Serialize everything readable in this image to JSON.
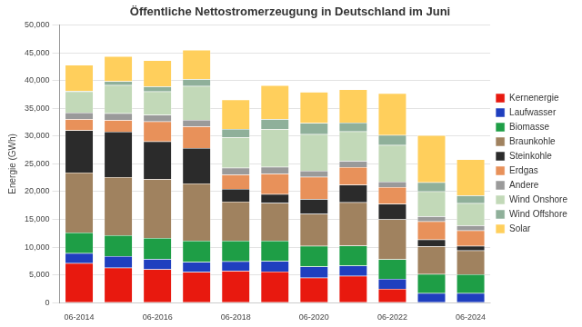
{
  "chart_data": {
    "type": "bar",
    "title": "Öffentliche Nettostromerzeugung in Deutschland im Juni",
    "y_label": "Energie (GWh)",
    "categories": [
      "06-2014",
      null,
      "06-2016",
      null,
      "06-2018",
      null,
      "06-2020",
      null,
      "06-2022",
      null,
      "06-2024"
    ],
    "stacked": true,
    "grid": true,
    "legend": "right",
    "ylim": [
      0,
      50000
    ],
    "yticks": [
      0,
      {
        "value": 5000,
        "label": "5,000"
      },
      {
        "value": 10000,
        "label": "10,000"
      },
      {
        "value": 15000,
        "label": "15,000"
      },
      {
        "value": 20000,
        "label": "20,000"
      },
      {
        "value": 25000,
        "label": "25,000"
      },
      {
        "value": 30000,
        "label": "30,000"
      },
      {
        "value": 35000,
        "label": "35,000"
      },
      {
        "value": 40000,
        "label": "40,000"
      },
      {
        "value": 45000,
        "label": "45,000"
      },
      {
        "value": 50000,
        "label": "50,000"
      }
    ],
    "series": [
      {
        "name": "Kernenergie",
        "color": "#e8190f",
        "values": [
          7100,
          6300,
          6000,
          5500,
          5700,
          5600,
          4500,
          4800,
          2500,
          0,
          0
        ]
      },
      {
        "name": "Laufwasser",
        "color": "#1f3fbf",
        "values": [
          1816,
          2079,
          1857,
          1813,
          1724,
          1891,
          2002,
          1853,
          1798,
          1704,
          1714
        ]
      },
      {
        "name": "Biomasse",
        "color": "#1e9e46",
        "values": [
          3700,
          3750,
          3800,
          3850,
          3750,
          3650,
          3700,
          3600,
          3500,
          3450,
          3400
        ]
      },
      {
        "name": "Braunkohle",
        "color": "#a0825f",
        "values": [
          10800,
          10500,
          10600,
          10300,
          7000,
          6800,
          5800,
          7800,
          7200,
          5000,
          4300
        ]
      },
      {
        "name": "Steinkohle",
        "color": "#2b2b2b",
        "values": [
          7610,
          8160,
          6765,
          6368,
          2302,
          1600,
          2656,
          3166,
          2800,
          1200,
          800
        ]
      },
      {
        "name": "Erdgas",
        "color": "#e8915a",
        "values": [
          2000,
          2100,
          3600,
          3900,
          2600,
          3700,
          4000,
          3200,
          3000,
          3300,
          2800
        ]
      },
      {
        "name": "Andere",
        "color": "#9a9a9a",
        "values": [
          1200,
          1200,
          1200,
          1200,
          1200,
          1200,
          1100,
          1100,
          1000,
          900,
          900
        ]
      },
      {
        "name": "Wind Onshore",
        "color": "#c2d9b8",
        "values": [
          3800,
          5100,
          4200,
          6100,
          5500,
          6800,
          6600,
          5300,
          6600,
          4500,
          4000
        ]
      },
      {
        "name": "Wind Offshore",
        "color": "#8fb09a",
        "values": [
          100,
          700,
          900,
          1200,
          1500,
          1800,
          2000,
          1600,
          1800,
          1600,
          1400
        ]
      },
      {
        "name": "Solar",
        "color": "#ffcf5c",
        "values": [
          4700,
          4500,
          4700,
          5300,
          5300,
          6100,
          5600,
          6000,
          7500,
          8500,
          6500
        ]
      }
    ]
  }
}
